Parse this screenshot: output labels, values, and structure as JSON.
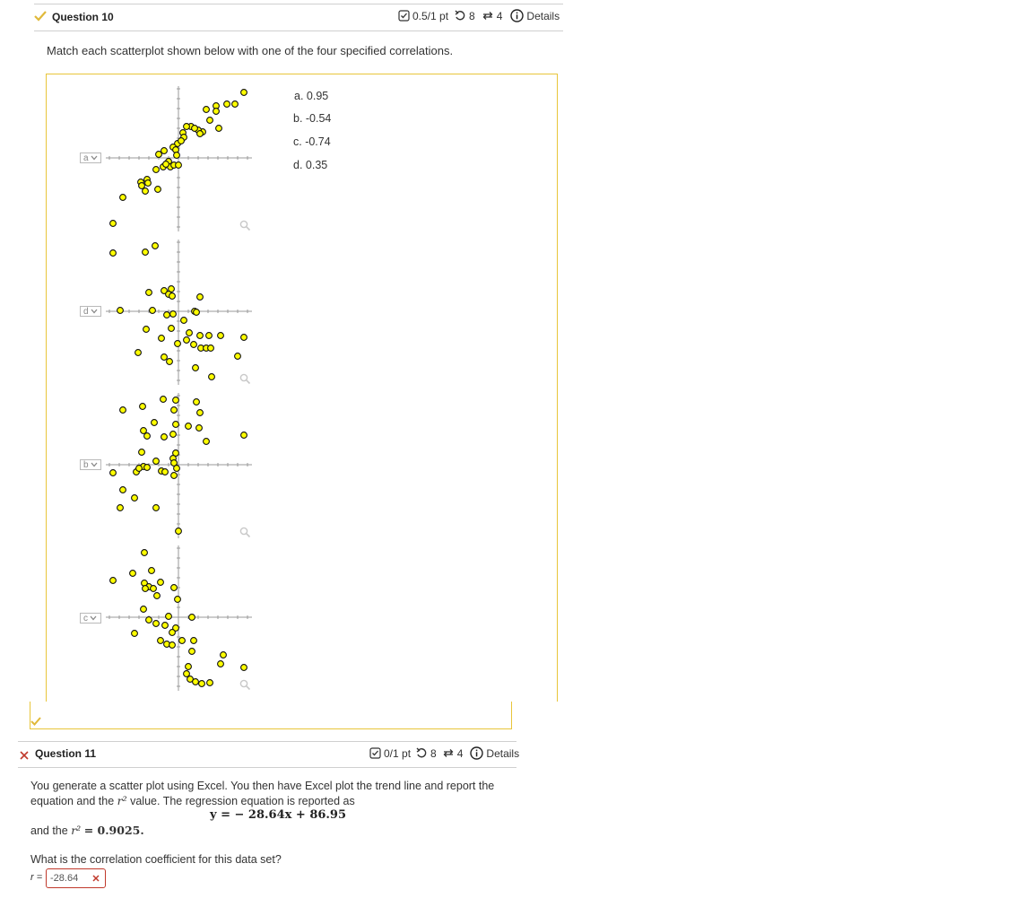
{
  "q10": {
    "title": "Question 10",
    "score": "0.5/1 pt",
    "retries": "8",
    "attempts": "4",
    "details": "Details",
    "prompt": "Match each scatterplot shown below with one of the four specified correlations.",
    "options": [
      "a. 0.95",
      "b. -0.54",
      "c. -0.74",
      "d. 0.35"
    ],
    "selects": [
      "a",
      "d",
      "b",
      "c"
    ],
    "status_color": "#e0b93a"
  },
  "q11": {
    "title": "Question 11",
    "score": "0/1 pt",
    "retries": "8",
    "attempts": "4",
    "details": "Details",
    "prompt_line1": "You generate a scatter plot using Excel. You then have Excel plot the trend line and report the",
    "prompt_line2_pre": "equation and the",
    "prompt_line2_post": "value. The regression equation is reported as",
    "r2_symbol": "r²",
    "equation": "y = − 28.64x + 86.95",
    "r2_line_pre": "and the",
    "r2_value": "= 0.9025.",
    "question": "What is the correlation coefficient for this data set?",
    "answer_label": "r =",
    "answer_value": "-28.64",
    "wrong_color": "#c0392b"
  },
  "icons": {
    "status_ok": "check-icon",
    "status_wrong": "x-icon",
    "score": "checkbox-icon",
    "retry": "retry-icon",
    "attempts": "repeat-icon",
    "details": "info-icon",
    "zoom": "magnifier-icon"
  }
}
